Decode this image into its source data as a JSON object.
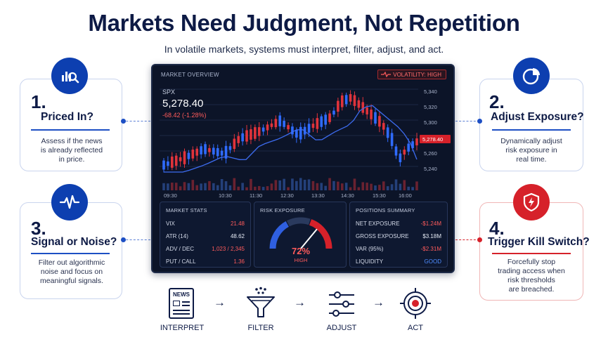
{
  "header": {
    "title": "Markets Need Judgment, Not Repetition",
    "subtitle": "In volatile markets, systems must interpret, filter, adjust, and act."
  },
  "cards": [
    {
      "number": "1.",
      "heading": "Priced In?",
      "body": [
        "Assess if the news",
        "is already reflected",
        "in price."
      ],
      "icon": "chart-search-icon",
      "accent": "#0d3fb0"
    },
    {
      "number": "2.",
      "heading": "Adjust Exposure?",
      "body": [
        "Dynamically adjust",
        "risk exposure in",
        "real time."
      ],
      "icon": "pie-chart-icon",
      "accent": "#0d3fb0"
    },
    {
      "number": "3.",
      "heading": "Signal or Noise?",
      "body": [
        "Filter out algorithmic",
        "noise and focus on",
        "meaningful signals."
      ],
      "icon": "pulse-wave-icon",
      "accent": "#0d3fb0"
    },
    {
      "number": "4.",
      "heading": "Trigger Kill Switch?",
      "body": [
        "Forcefully stop",
        "trading access when",
        "risk thresholds",
        "are breached."
      ],
      "icon": "shield-bolt-icon",
      "accent": "#d6212a"
    }
  ],
  "dashboard": {
    "title": "MARKET OVERVIEW",
    "volatility": "VOLATILITY: HIGH",
    "symbol": "SPX",
    "price": "5,278.40",
    "change": "-68.42 (-1.28%)",
    "price_tag": "5,278.40",
    "y_ticks": [
      "5,340",
      "5,320",
      "5,300",
      "5,260",
      "5,240"
    ],
    "x_ticks": [
      "09:30",
      "10:30",
      "11:30",
      "12:30",
      "13:30",
      "14:30",
      "15:30",
      "16:00"
    ],
    "market_stats": {
      "title": "MARKET STATS",
      "rows": [
        {
          "label": "VIX",
          "value": "21.48",
          "color": "#ff5b5b"
        },
        {
          "label": "ATR (14)",
          "value": "48.62",
          "color": "#e6ebf5"
        },
        {
          "label": "ADV / DEC",
          "value": "1,023 / 2,345",
          "color": "#ff5b5b"
        },
        {
          "label": "PUT / CALL",
          "value": "1.36",
          "color": "#ff5b5b"
        }
      ]
    },
    "risk_exposure": {
      "title": "RISK EXPOSURE",
      "value": "72%",
      "level": "HIGH",
      "fraction": 0.72
    },
    "positions": {
      "title": "POSITIONS SUMMARY",
      "rows": [
        {
          "label": "NET EXPOSURE",
          "value": "-$1.24M",
          "color": "#ff5b5b"
        },
        {
          "label": "GROSS EXPOSURE",
          "value": "$3.18M",
          "color": "#e6ebf5"
        },
        {
          "label": "VAR (95%)",
          "value": "-$2.31M",
          "color": "#ff5b5b"
        },
        {
          "label": "LIQUIDITY",
          "value": "GOOD",
          "color": "#4f8cff"
        }
      ]
    }
  },
  "flow": [
    {
      "label": "INTERPRET",
      "icon": "news-icon",
      "icon_text": "NEWS"
    },
    {
      "label": "FILTER",
      "icon": "funnel-icon"
    },
    {
      "label": "ADJUST",
      "icon": "sliders-icon"
    },
    {
      "label": "ACT",
      "icon": "target-icon"
    }
  ],
  "colors": {
    "navy": "#0d1a45",
    "blue": "#0d3fb0",
    "red": "#d6212a",
    "up": "#2f6bff",
    "down": "#e0333b"
  }
}
